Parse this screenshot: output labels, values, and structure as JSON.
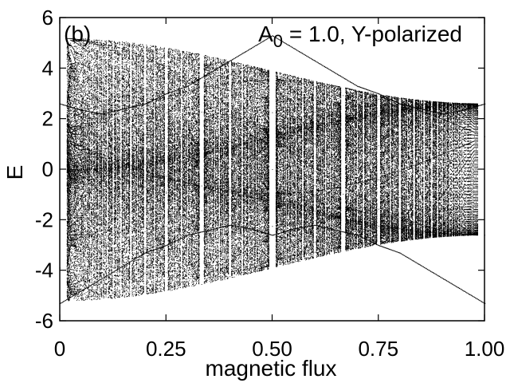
{
  "chart_data": {
    "type": "scatter",
    "panel_label": "(b)",
    "annotation": {
      "prefix": "A",
      "subscript": "0",
      "suffix": " = 1.0, Y-polarized"
    },
    "xlabel": "magnetic flux",
    "ylabel": "E",
    "xlim": [
      0,
      1
    ],
    "ylim": [
      -6,
      6
    ],
    "x_ticks": [
      {
        "value": 0,
        "label": "0"
      },
      {
        "value": 0.25,
        "label": "0.25"
      },
      {
        "value": 0.5,
        "label": "0.50"
      },
      {
        "value": 0.75,
        "label": "0.75"
      },
      {
        "value": 1,
        "label": "1.00"
      }
    ],
    "y_ticks": [
      {
        "value": -6,
        "label": "-6"
      },
      {
        "value": -4,
        "label": "-4"
      },
      {
        "value": -2,
        "label": "-2"
      },
      {
        "value": 0,
        "label": "0"
      },
      {
        "value": 2,
        "label": "2"
      },
      {
        "value": 4,
        "label": "4"
      },
      {
        "value": 6,
        "label": "6"
      }
    ],
    "grid": false,
    "legend": "none",
    "series": [
      {
        "style": "dots",
        "color": "#000000",
        "x": [
          0,
          0.05,
          0.1,
          0.15,
          0.2,
          0.25,
          0.3,
          0.35,
          0.4,
          0.45,
          0.5,
          0.55,
          0.6,
          0.65,
          0.7,
          0.75,
          0.8,
          0.85,
          0.9,
          0.95,
          1
        ],
        "y_upper_edge": [
          2.6,
          2.35,
          2.2,
          2.4,
          2.6,
          3.0,
          3.3,
          3.8,
          4.3,
          4.8,
          5.3,
          4.8,
          4.3,
          3.8,
          3.3,
          3.0,
          2.6,
          2.4,
          2.2,
          2.35,
          2.6
        ],
        "y_lower_edge": [
          -5.3,
          -4.8,
          -4.3,
          -3.8,
          -3.3,
          -3.0,
          -2.6,
          -2.4,
          -2.2,
          -2.35,
          -2.6,
          -2.35,
          -2.2,
          -2.4,
          -2.6,
          -3.0,
          -3.3,
          -3.8,
          -4.3,
          -4.8,
          -5.3
        ]
      }
    ]
  }
}
